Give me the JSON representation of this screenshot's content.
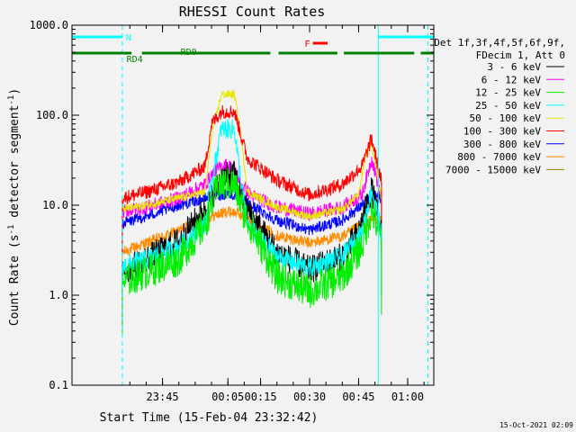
{
  "chart_data": {
    "type": "line",
    "title": "RHESSI Count Rates",
    "xlabel": "Start Time (15-Feb-04 23:32:42)",
    "ylabel_main": "Count Rate (s",
    "ylabel_sup": "-1",
    "ylabel_tail": " detector segment",
    "ylabel_sup2": "-1",
    "ylabel_close": ")",
    "yscale": "log",
    "ylim": [
      0.1,
      1000.0
    ],
    "xlim_min": [
      -42.7,
      68.0
    ],
    "yticks": [
      {
        "v": 0.1,
        "label": "0.1"
      },
      {
        "v": 1.0,
        "label": "1.0"
      },
      {
        "v": 10.0,
        "label": "10.0"
      },
      {
        "v": 100.0,
        "label": "100.0"
      },
      {
        "v": 1000.0,
        "label": "1000.0"
      }
    ],
    "xticks": [
      {
        "t": -15,
        "label": "23:45"
      },
      {
        "t": 5,
        "label": "00:05"
      },
      {
        "t": 15,
        "label": "00:15"
      },
      {
        "t": 30,
        "label": "00:30"
      },
      {
        "t": 45,
        "label": "00:45"
      },
      {
        "t": 60,
        "label": "01:00"
      }
    ],
    "legend": {
      "position": "right",
      "header": [
        "Det 1f,3f,4f,5f,6f,9f,",
        "FDecim 1, Att 0"
      ],
      "entries": [
        {
          "label": "3 - 6 keV",
          "color": "#000000"
        },
        {
          "label": "6 - 12 keV",
          "color": "#ff00ff"
        },
        {
          "label": "12 - 25 keV",
          "color": "#00ee00"
        },
        {
          "label": "25 - 50 keV",
          "color": "#00ffff"
        },
        {
          "label": "50 - 100 keV",
          "color": "#e6e600"
        },
        {
          "label": "100 - 300 keV",
          "color": "#ff0000"
        },
        {
          "label": "300 - 800 keV",
          "color": "#0000ff"
        },
        {
          "label": "800 - 7000 keV",
          "color": "#ff8c00"
        },
        {
          "label": "7000 - 15000 keV",
          "color": "#8b8b00"
        }
      ]
    },
    "series": [
      {
        "color": "#ff8c00",
        "noise": 0.04,
        "points": [
          [
            -27.3,
            3.0
          ],
          [
            -20,
            3.8
          ],
          [
            -10,
            5.2
          ],
          [
            0,
            7.5
          ],
          [
            5,
            8.5
          ],
          [
            8,
            8.2
          ],
          [
            12,
            6.5
          ],
          [
            20,
            4.6
          ],
          [
            30,
            3.8
          ],
          [
            40,
            4.5
          ],
          [
            46,
            6.0
          ],
          [
            49.5,
            7.0
          ],
          [
            52,
            7.0
          ]
        ]
      },
      {
        "color": "#0000ff",
        "noise": 0.04,
        "points": [
          [
            -27.3,
            6.3
          ],
          [
            -20,
            7.5
          ],
          [
            -10,
            10
          ],
          [
            0,
            12.5
          ],
          [
            5,
            13.5
          ],
          [
            8,
            12.5
          ],
          [
            12,
            10
          ],
          [
            20,
            6.8
          ],
          [
            30,
            5.3
          ],
          [
            40,
            6.8
          ],
          [
            46,
            10
          ],
          [
            49.5,
            13
          ],
          [
            52,
            12
          ]
        ]
      },
      {
        "color": "#ff00ff",
        "noise": 0.05,
        "points": [
          [
            -27.3,
            8.5
          ],
          [
            -20,
            9.5
          ],
          [
            -10,
            12
          ],
          [
            -2,
            17
          ],
          [
            1,
            24
          ],
          [
            4,
            28
          ],
          [
            7,
            26
          ],
          [
            9,
            17
          ],
          [
            12,
            13
          ],
          [
            20,
            9.5
          ],
          [
            30,
            8.0
          ],
          [
            40,
            9.5
          ],
          [
            46,
            13
          ],
          [
            49,
            33
          ],
          [
            52,
            12
          ]
        ]
      },
      {
        "color": "#e6e600",
        "noise": 0.03,
        "points": [
          [
            -27.3,
            9.0
          ],
          [
            -20,
            10
          ],
          [
            -10,
            12
          ],
          [
            -2,
            14
          ],
          [
            0,
            60
          ],
          [
            3,
            170
          ],
          [
            7,
            170
          ],
          [
            9,
            60
          ],
          [
            11,
            14
          ],
          [
            20,
            9.5
          ],
          [
            30,
            7.5
          ],
          [
            40,
            9
          ],
          [
            45,
            13
          ],
          [
            47,
            35
          ],
          [
            49,
            50
          ],
          [
            51,
            18
          ],
          [
            52,
            12
          ]
        ]
      },
      {
        "color": "#ff0000",
        "noise": 0.05,
        "points": [
          [
            -27.3,
            12
          ],
          [
            -20,
            14
          ],
          [
            -10,
            18
          ],
          [
            -2,
            27
          ],
          [
            0,
            80
          ],
          [
            3,
            110
          ],
          [
            7,
            110
          ],
          [
            9,
            60
          ],
          [
            11,
            33
          ],
          [
            20,
            19
          ],
          [
            30,
            13
          ],
          [
            40,
            17
          ],
          [
            46,
            27
          ],
          [
            49,
            55
          ],
          [
            52,
            18
          ]
        ]
      },
      {
        "color": "#000000",
        "noise": 0.1,
        "points": [
          [
            -27.3,
            1.8
          ],
          [
            -20,
            2.5
          ],
          [
            -10,
            4.0
          ],
          [
            -2,
            9
          ],
          [
            3,
            20
          ],
          [
            7,
            22
          ],
          [
            10,
            10
          ],
          [
            20,
            3.0
          ],
          [
            30,
            1.9
          ],
          [
            40,
            2.7
          ],
          [
            45,
            5
          ],
          [
            49,
            15
          ],
          [
            52,
            5
          ]
        ]
      },
      {
        "color": "#00ffff",
        "noise": 0.07,
        "points": [
          [
            -27.3,
            2.1
          ],
          [
            -20,
            2.5
          ],
          [
            -10,
            3.5
          ],
          [
            -2,
            6
          ],
          [
            0,
            18
          ],
          [
            3,
            70
          ],
          [
            7,
            70
          ],
          [
            9,
            18
          ],
          [
            11,
            6
          ],
          [
            20,
            2.7
          ],
          [
            30,
            2.0
          ],
          [
            40,
            2.7
          ],
          [
            46,
            5
          ],
          [
            49,
            15
          ],
          [
            52,
            5
          ]
        ]
      },
      {
        "color": "#00ee00",
        "noise": 0.12,
        "points": [
          [
            -27.3,
            1.4
          ],
          [
            -20,
            1.8
          ],
          [
            -10,
            2.5
          ],
          [
            -2,
            6
          ],
          [
            2,
            17
          ],
          [
            7,
            17
          ],
          [
            10,
            8
          ],
          [
            20,
            1.6
          ],
          [
            30,
            1.1
          ],
          [
            40,
            1.6
          ],
          [
            46,
            3.5
          ],
          [
            49,
            9
          ],
          [
            52,
            4
          ]
        ]
      }
    ],
    "attenuator_bars": [
      {
        "color": "#00ffff",
        "segments": [
          [
            -42.7,
            -27.3
          ],
          [
            51.0,
            68.0
          ]
        ],
        "label": "N",
        "label_t": -26.2,
        "row": "top"
      },
      {
        "color": "#008000",
        "segments": [
          [
            -42.7,
            -24.5
          ],
          [
            -21.3,
            18.0
          ],
          [
            20.5,
            38.5
          ],
          [
            40.5,
            62.0
          ],
          [
            64.0,
            68.0
          ]
        ],
        "row": "mid"
      },
      {
        "color": "#ff0000",
        "segments": [
          [
            31.0,
            35.5
          ]
        ],
        "label": "F",
        "label_t": 28.5,
        "row": "flag"
      }
    ],
    "bar_labels": [
      {
        "text": "RD0",
        "t": -9.5,
        "color": "#008000",
        "row": "above"
      },
      {
        "text": "RD4",
        "t": -26.0,
        "color": "#008000",
        "row": "below"
      }
    ],
    "vlines": [
      {
        "t": -42.7,
        "color": "#00ffff",
        "style": "solid"
      },
      {
        "t": -27.3,
        "color": "#00ffff",
        "style": "dashed"
      },
      {
        "t": 51.0,
        "color": "#00ffff",
        "style": "solid"
      },
      {
        "t": 66.2,
        "color": "#00ffff",
        "style": "dashed"
      }
    ]
  },
  "footer": {
    "timestamp": "15-Oct-2021 02:09"
  }
}
